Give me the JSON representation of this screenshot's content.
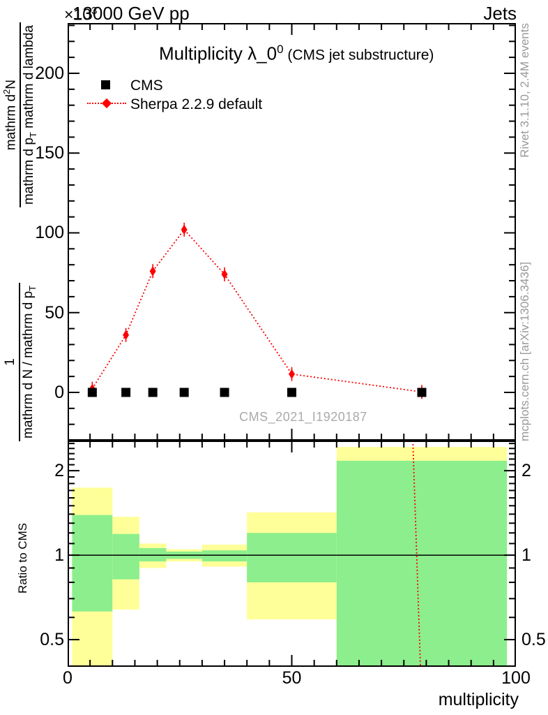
{
  "header": {
    "left_label": "13000 GeV pp",
    "right_label": "Jets",
    "scale_prefix": "×10",
    "scale_exponent": "3"
  },
  "title": {
    "main": "Multiplicity λ_0",
    "superscript": "0",
    "suffix": " (CMS jet substructure)"
  },
  "legend": {
    "items": [
      {
        "label": "CMS",
        "marker": "black-filled-square"
      },
      {
        "label": "Sherpa 2.2.9 default",
        "marker": "red-diamond-dotted-line"
      }
    ]
  },
  "watermark": "CMS_2021_I1920187",
  "side_notes": {
    "top": "Rivet 3.1.10,  2.4M events",
    "bottom": "mcplots.cern.ch [arXiv:1306.3436]"
  },
  "axis_labels": {
    "x": "multiplicity",
    "ratio_y": "Ratio to CMS",
    "main_y_frac1_num": "1",
    "main_y_frac1_den_main": "mathrm d N / mathrm d p",
    "main_y_frac1_den_sub": "T",
    "main_y_frac2_num_main": "mathrm d",
    "main_y_frac2_num_sup": "2",
    "main_y_frac2_num_tail": "N",
    "main_y_frac2_den_a": "mathrm d p",
    "main_y_frac2_den_sub": "T",
    "main_y_frac2_den_b": " mathrm d lambda"
  },
  "colors": {
    "red": "#ff0000",
    "band_yellow": "#ffff99",
    "band_green": "#8cee8c",
    "gray_text": "#999999",
    "watermark_gray": "#aaaaaa"
  },
  "chart_data": [
    {
      "type": "line",
      "panel": "main",
      "title": "Multiplicity λ_0^0 (CMS jet substructure)",
      "xlabel": "multiplicity",
      "ylabel": "1/(dN/dp_T) d²N/(dp_T dlambda)",
      "y_scale_factor": "×10³",
      "xlim": [
        0,
        100
      ],
      "ylim": [
        -30.2,
        231.5
      ],
      "x_major_ticks": [
        0,
        50,
        100
      ],
      "x_minor_tick_step": 5,
      "y_major_ticks": [
        0,
        50,
        100,
        150,
        200
      ],
      "y_minor_tick_step": 10,
      "grid": false,
      "legend_position": "top-left-inside",
      "series": [
        {
          "name": "CMS",
          "type": "scatter",
          "marker": "square",
          "color": "#000000",
          "x": [
            5.5,
            13,
            19,
            26,
            35,
            50,
            79
          ],
          "y": [
            0,
            0,
            0,
            0,
            0,
            0,
            0
          ]
        },
        {
          "name": "Sherpa 2.2.9 default",
          "type": "line+scatter",
          "marker": "diamond",
          "line_style": "dotted",
          "color": "#ff0000",
          "x": [
            5.5,
            13,
            19,
            26,
            35,
            50,
            79
          ],
          "y": [
            2.3,
            36,
            76,
            102,
            74,
            11.5,
            0.3
          ]
        }
      ]
    },
    {
      "type": "ratio-band",
      "panel": "ratio",
      "ylabel": "Ratio to CMS",
      "y_scale": "log",
      "xlim": [
        0,
        100
      ],
      "ylim": [
        0.4,
        2.56
      ],
      "y_major_ticks": [
        0.5,
        1,
        2
      ],
      "y_minor_ticks": [
        0.4,
        0.6,
        0.7,
        0.8,
        0.9,
        1.1,
        1.2,
        1.3,
        1.4,
        1.5,
        1.6,
        1.7,
        1.8,
        1.9,
        2.1,
        2.2,
        2.3,
        2.4,
        2.5
      ],
      "reference_line": 1,
      "bins": [
        {
          "x": [
            1,
            10
          ],
          "yellow": [
            0.38,
            1.74
          ],
          "green": [
            0.63,
            1.39
          ]
        },
        {
          "x": [
            10,
            16
          ],
          "yellow": [
            0.64,
            1.37
          ],
          "green": [
            0.82,
            1.19
          ]
        },
        {
          "x": [
            16,
            22
          ],
          "yellow": [
            0.9,
            1.1
          ],
          "green": [
            0.95,
            1.06
          ]
        },
        {
          "x": [
            22,
            30
          ],
          "yellow": [
            0.95,
            1.05
          ],
          "green": [
            0.97,
            1.03
          ]
        },
        {
          "x": [
            30,
            40
          ],
          "yellow": [
            0.91,
            1.09
          ],
          "green": [
            0.95,
            1.04
          ]
        },
        {
          "x": [
            40,
            60
          ],
          "yellow": [
            0.59,
            1.42
          ],
          "green": [
            0.8,
            1.2
          ]
        },
        {
          "x": [
            60,
            98
          ],
          "yellow": [
            0.38,
            2.43
          ],
          "green": [
            0.38,
            2.17
          ]
        }
      ],
      "mc_ratio_line": {
        "color": "#ff0000",
        "style": "dotted",
        "x_top": 77,
        "x_bottom": 78.7
      }
    }
  ]
}
